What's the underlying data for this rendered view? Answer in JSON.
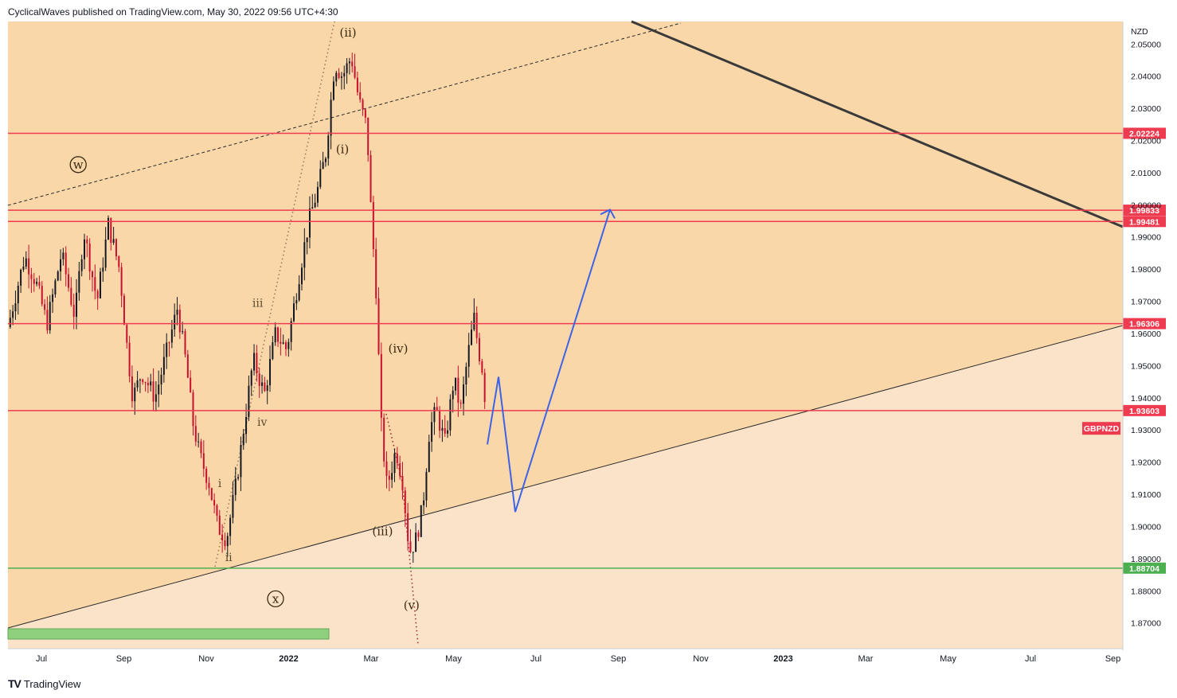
{
  "header": {
    "text": "CyclicalWaves published on TradingView.com, May 30, 2022 09:56 UTC+4:30"
  },
  "footer": {
    "logo_mark": "TV",
    "brand": "TradingView"
  },
  "chart_data": {
    "type": "candlestick",
    "symbol": "GBPNZD",
    "currency": "NZD",
    "colors": {
      "background_upper": "#fad7a9",
      "background_lower": "#fbe3c9",
      "horizontal_line": "#ef3b4f",
      "support_line": "#4caf50",
      "projection": "#3c63e8",
      "candle": "#131722",
      "candle_down": "#c8102e",
      "trend_line": "#3a3a3a"
    },
    "y_axis": {
      "min": 1.862,
      "max": 2.057,
      "ticks": [
        "1.87000",
        "1.88000",
        "1.89000",
        "1.90000",
        "1.91000",
        "1.92000",
        "1.93000",
        "1.94000",
        "1.95000",
        "1.96000",
        "1.97000",
        "1.98000",
        "1.99000",
        "2.00000",
        "2.01000",
        "2.02000",
        "2.03000",
        "2.04000",
        "2.05000"
      ]
    },
    "x_axis": {
      "ticks": [
        {
          "label": "Jul",
          "bold": false
        },
        {
          "label": "Sep",
          "bold": false
        },
        {
          "label": "Nov",
          "bold": false
        },
        {
          "label": "2022",
          "bold": true
        },
        {
          "label": "Mar",
          "bold": false
        },
        {
          "label": "May",
          "bold": false
        },
        {
          "label": "Jul",
          "bold": false
        },
        {
          "label": "Sep",
          "bold": false
        },
        {
          "label": "Nov",
          "bold": false
        },
        {
          "label": "2023",
          "bold": true
        },
        {
          "label": "Mar",
          "bold": false
        },
        {
          "label": "May",
          "bold": false
        },
        {
          "label": "Jul",
          "bold": false
        },
        {
          "label": "Sep",
          "bold": false
        }
      ]
    },
    "horizontal_levels": [
      {
        "value": 2.02224,
        "label": "2.02224",
        "kind": "resistance"
      },
      {
        "value": 1.99833,
        "label": "1.99833",
        "kind": "resistance"
      },
      {
        "value": 1.99481,
        "label": "1.99481",
        "kind": "resistance"
      },
      {
        "value": 1.96306,
        "label": "1.96306",
        "kind": "resistance"
      },
      {
        "value": 1.93603,
        "label": "1.93603",
        "kind": "resistance"
      },
      {
        "value": 1.88704,
        "label": "1.88704",
        "kind": "support"
      }
    ],
    "price_label": {
      "text": "GBPNZD",
      "value": 1.9305
    },
    "wave_labels": [
      {
        "text": "w",
        "circled": true,
        "t": 0.063,
        "value": 2.0125
      },
      {
        "text": "x",
        "circled": true,
        "t": 0.24,
        "value": 1.8775
      },
      {
        "text": "(ii)",
        "circled": false,
        "t": 0.305,
        "value": 2.0535
      },
      {
        "text": "(i)",
        "circled": false,
        "t": 0.3,
        "value": 2.0173
      },
      {
        "text": "(iv)",
        "circled": false,
        "t": 0.35,
        "value": 1.9553
      },
      {
        "text": "(iii)",
        "circled": false,
        "t": 0.336,
        "value": 1.8985
      },
      {
        "text": "(v)",
        "circled": false,
        "t": 0.362,
        "value": 1.8755
      },
      {
        "text": "iii",
        "circled": false,
        "t": 0.224,
        "value": 1.9695
      },
      {
        "text": "iv",
        "circled": false,
        "t": 0.228,
        "value": 1.9325
      },
      {
        "text": "i",
        "circled": false,
        "t": 0.19,
        "value": 1.9135
      },
      {
        "text": "ii",
        "circled": false,
        "t": 0.198,
        "value": 1.8905
      }
    ],
    "projection_path": [
      {
        "t": 0.43,
        "value": 1.9255
      },
      {
        "t": 0.44,
        "value": 1.9465
      },
      {
        "t": 0.455,
        "value": 1.9045
      },
      {
        "t": 0.54,
        "value": 1.9985
      }
    ]
  }
}
